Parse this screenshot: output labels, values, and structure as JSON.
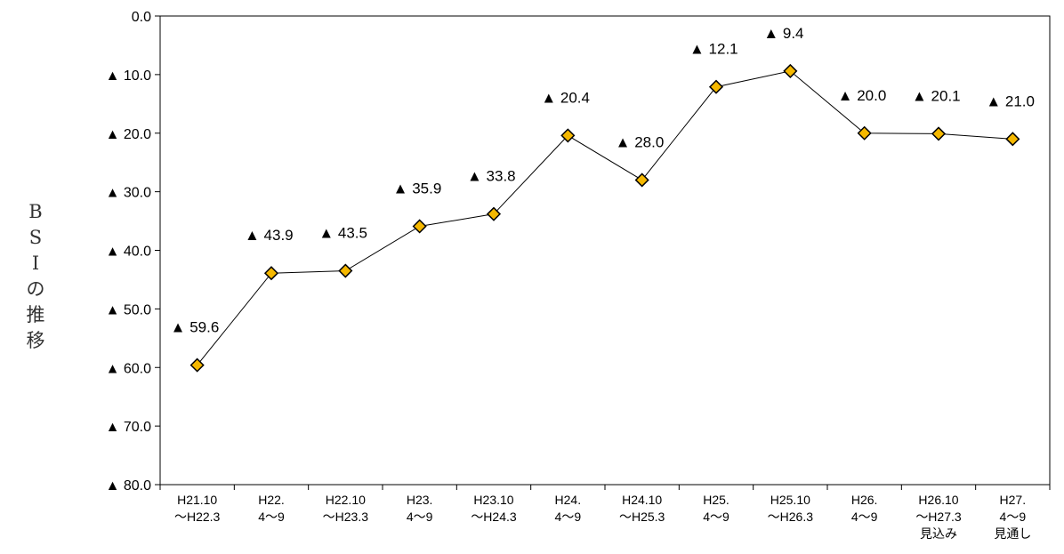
{
  "chart_data": {
    "type": "line",
    "ylabel": "BSIの推移",
    "ylim": [
      0,
      80
    ],
    "y_inverted": true,
    "y_ticks": [
      "0.0",
      "▲ 10.0",
      "▲ 20.0",
      "▲ 30.0",
      "▲ 40.0",
      "▲ 50.0",
      "▲ 60.0",
      "▲ 70.0",
      "▲ 80.0"
    ],
    "categories": [
      [
        "H21.10",
        "～H22.3"
      ],
      [
        "H22.",
        "4～9"
      ],
      [
        "H22.10",
        "～H23.3"
      ],
      [
        "H23.",
        "4～9"
      ],
      [
        "H23.10",
        "～H24.3"
      ],
      [
        "H24.",
        "4～9"
      ],
      [
        "H24.10",
        "～H25.3"
      ],
      [
        "H25.",
        "4～9"
      ],
      [
        "H25.10",
        "～H26.3"
      ],
      [
        "H26.",
        "4～9"
      ],
      [
        "H26.10",
        "～H27.3",
        "見込み"
      ],
      [
        "H27.",
        "4～9",
        "見通し"
      ]
    ],
    "values": [
      -59.6,
      -43.9,
      -43.5,
      -35.9,
      -33.8,
      -20.4,
      -28.0,
      -12.1,
      -9.4,
      -20.0,
      -20.1,
      -21.0
    ],
    "data_labels": [
      "▲ 59.6",
      "▲ 43.9",
      "▲ 43.5",
      "▲ 35.9",
      "▲ 33.8",
      "▲ 20.4",
      "▲ 28.0",
      "▲ 12.1",
      "▲ 9.4",
      "▲ 20.0",
      "▲ 20.1",
      "▲ 21.0"
    ],
    "marker": "diamond",
    "marker_color": "#F5B800",
    "line_color": "#000000",
    "grid": false
  }
}
